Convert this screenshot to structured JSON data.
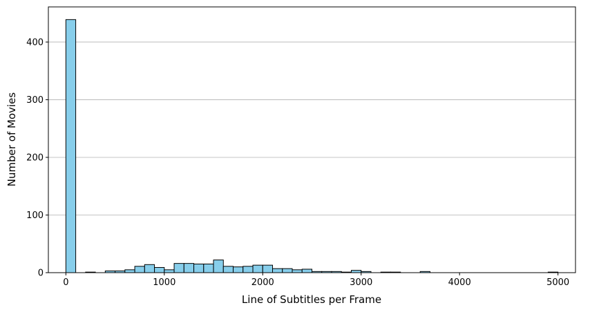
{
  "chart_data": {
    "type": "bar",
    "subtype": "histogram",
    "title": "",
    "xlabel": "Line of Subtitles per Frame",
    "ylabel": "Number of Movies",
    "xlim": [
      -178,
      5178
    ],
    "ylim": [
      0,
      461
    ],
    "x_ticks": [
      0,
      1000,
      2000,
      3000,
      4000,
      5000
    ],
    "y_ticks": [
      0,
      100,
      200,
      300,
      400
    ],
    "grid": "y-axis only",
    "bar_color": "#87CEEB",
    "edge_color": "#000000",
    "bin_width": 100,
    "bins": [
      {
        "x0": 0,
        "x1": 100,
        "count": 439
      },
      {
        "x0": 200,
        "x1": 300,
        "count": 1
      },
      {
        "x0": 400,
        "x1": 500,
        "count": 3
      },
      {
        "x0": 500,
        "x1": 600,
        "count": 3
      },
      {
        "x0": 600,
        "x1": 700,
        "count": 5
      },
      {
        "x0": 700,
        "x1": 800,
        "count": 11
      },
      {
        "x0": 800,
        "x1": 900,
        "count": 14
      },
      {
        "x0": 900,
        "x1": 1000,
        "count": 9
      },
      {
        "x0": 1000,
        "x1": 1100,
        "count": 5
      },
      {
        "x0": 1100,
        "x1": 1200,
        "count": 16
      },
      {
        "x0": 1200,
        "x1": 1300,
        "count": 16
      },
      {
        "x0": 1300,
        "x1": 1400,
        "count": 15
      },
      {
        "x0": 1400,
        "x1": 1500,
        "count": 15
      },
      {
        "x0": 1500,
        "x1": 1600,
        "count": 22
      },
      {
        "x0": 1600,
        "x1": 1700,
        "count": 11
      },
      {
        "x0": 1700,
        "x1": 1800,
        "count": 10
      },
      {
        "x0": 1800,
        "x1": 1900,
        "count": 11
      },
      {
        "x0": 1900,
        "x1": 2000,
        "count": 13
      },
      {
        "x0": 2000,
        "x1": 2100,
        "count": 13
      },
      {
        "x0": 2100,
        "x1": 2200,
        "count": 7
      },
      {
        "x0": 2200,
        "x1": 2300,
        "count": 7
      },
      {
        "x0": 2300,
        "x1": 2400,
        "count": 5
      },
      {
        "x0": 2400,
        "x1": 2500,
        "count": 6
      },
      {
        "x0": 2500,
        "x1": 2600,
        "count": 2
      },
      {
        "x0": 2600,
        "x1": 2700,
        "count": 2
      },
      {
        "x0": 2700,
        "x1": 2800,
        "count": 2
      },
      {
        "x0": 2800,
        "x1": 2900,
        "count": 1
      },
      {
        "x0": 2900,
        "x1": 3000,
        "count": 4
      },
      {
        "x0": 3000,
        "x1": 3100,
        "count": 2
      },
      {
        "x0": 3200,
        "x1": 3300,
        "count": 1
      },
      {
        "x0": 3300,
        "x1": 3400,
        "count": 1
      },
      {
        "x0": 3600,
        "x1": 3700,
        "count": 2
      },
      {
        "x0": 4900,
        "x1": 5000,
        "count": 1
      }
    ]
  }
}
